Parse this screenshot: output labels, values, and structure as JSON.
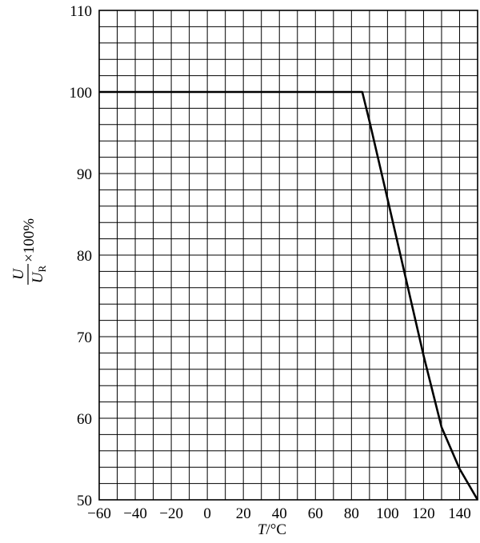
{
  "chart_data": {
    "type": "line",
    "title": "",
    "xlabel": {
      "italic": "T",
      "unit": "/°C"
    },
    "ylabel": {
      "numerator": "U",
      "denominator": "U",
      "denominator_subscript": "R",
      "suffix": "×100%"
    },
    "xlim": [
      -60,
      150
    ],
    "ylim": [
      50,
      110
    ],
    "grid": true,
    "x_ticks": [
      -60,
      -40,
      -20,
      0,
      20,
      40,
      60,
      80,
      100,
      120,
      140
    ],
    "x_tick_labels": [
      "−60",
      "−40",
      "−20",
      "0",
      "20",
      "40",
      "60",
      "80",
      "100",
      "120",
      "140"
    ],
    "y_ticks": [
      50,
      60,
      70,
      80,
      90,
      100,
      110
    ],
    "y_tick_labels": [
      "50",
      "60",
      "70",
      "80",
      "90",
      "100",
      "110"
    ],
    "series": [
      {
        "x": [
          -60,
          86,
          90,
          100,
          110,
          120,
          130,
          140,
          150
        ],
        "y": [
          100,
          100,
          96.4,
          86.9,
          77.3,
          67.7,
          58.9,
          53.8,
          50
        ]
      }
    ]
  }
}
